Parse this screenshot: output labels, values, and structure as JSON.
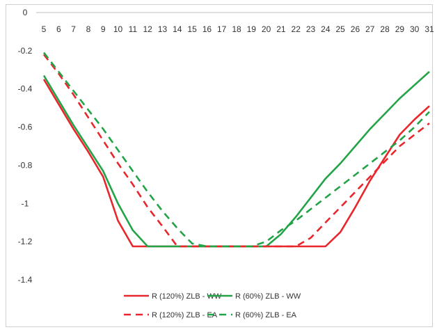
{
  "chart_data": {
    "type": "line",
    "title": "",
    "xlabel": "",
    "ylabel": "",
    "x": [
      5,
      6,
      7,
      8,
      9,
      10,
      11,
      12,
      13,
      14,
      15,
      16,
      17,
      18,
      19,
      20,
      21,
      22,
      23,
      24,
      25,
      26,
      27,
      28,
      29,
      30,
      31
    ],
    "xlim": [
      5,
      31
    ],
    "ylim": [
      -1.4,
      0
    ],
    "yticks": [
      0,
      -0.2,
      -0.4,
      -0.6,
      -0.8,
      -1,
      -1.2,
      -1.4
    ],
    "ytick_labels": [
      "0",
      "-0.2",
      "-0.4",
      "-0.6",
      "-0.8",
      "-1",
      "-1.2",
      "-1.4"
    ],
    "xaxis_position": "top",
    "grid": false,
    "legend_position": "bottom",
    "series": [
      {
        "name": "R (120%) ZLB - WW",
        "color": "#e8262b",
        "dash": "solid",
        "values": [
          -0.35,
          -0.48,
          -0.61,
          -0.73,
          -0.86,
          -1.09,
          -1.225,
          -1.225,
          -1.225,
          -1.225,
          -1.225,
          -1.225,
          -1.225,
          -1.225,
          -1.225,
          -1.225,
          -1.225,
          -1.225,
          -1.225,
          -1.225,
          -1.15,
          -1.02,
          -0.88,
          -0.76,
          -0.64,
          -0.56,
          -0.49
        ]
      },
      {
        "name": "R (60%) ZLB - WW",
        "color": "#23a347",
        "dash": "solid",
        "values": [
          -0.33,
          -0.46,
          -0.59,
          -0.71,
          -0.83,
          -1.0,
          -1.14,
          -1.225,
          -1.225,
          -1.225,
          -1.225,
          -1.225,
          -1.225,
          -1.225,
          -1.225,
          -1.225,
          -1.16,
          -1.07,
          -0.97,
          -0.87,
          -0.79,
          -0.7,
          -0.61,
          -0.53,
          -0.45,
          -0.38,
          -0.31
        ]
      },
      {
        "name": "R (120%) ZLB - EA",
        "color": "#e8262b",
        "dash": "dashed",
        "values": [
          -0.22,
          -0.32,
          -0.43,
          -0.55,
          -0.67,
          -0.79,
          -0.9,
          -1.02,
          -1.12,
          -1.225,
          -1.225,
          -1.225,
          -1.225,
          -1.225,
          -1.225,
          -1.225,
          -1.225,
          -1.225,
          -1.18,
          -1.1,
          -1.02,
          -0.94,
          -0.86,
          -0.78,
          -0.7,
          -0.64,
          -0.58
        ]
      },
      {
        "name": "R (60%) ZLB - EA",
        "color": "#23a347",
        "dash": "dashed",
        "values": [
          -0.21,
          -0.31,
          -0.41,
          -0.51,
          -0.61,
          -0.72,
          -0.83,
          -0.94,
          -1.04,
          -1.13,
          -1.21,
          -1.225,
          -1.225,
          -1.225,
          -1.225,
          -1.2,
          -1.14,
          -1.09,
          -1.03,
          -0.97,
          -0.91,
          -0.85,
          -0.79,
          -0.73,
          -0.67,
          -0.6,
          -0.52
        ]
      }
    ]
  }
}
